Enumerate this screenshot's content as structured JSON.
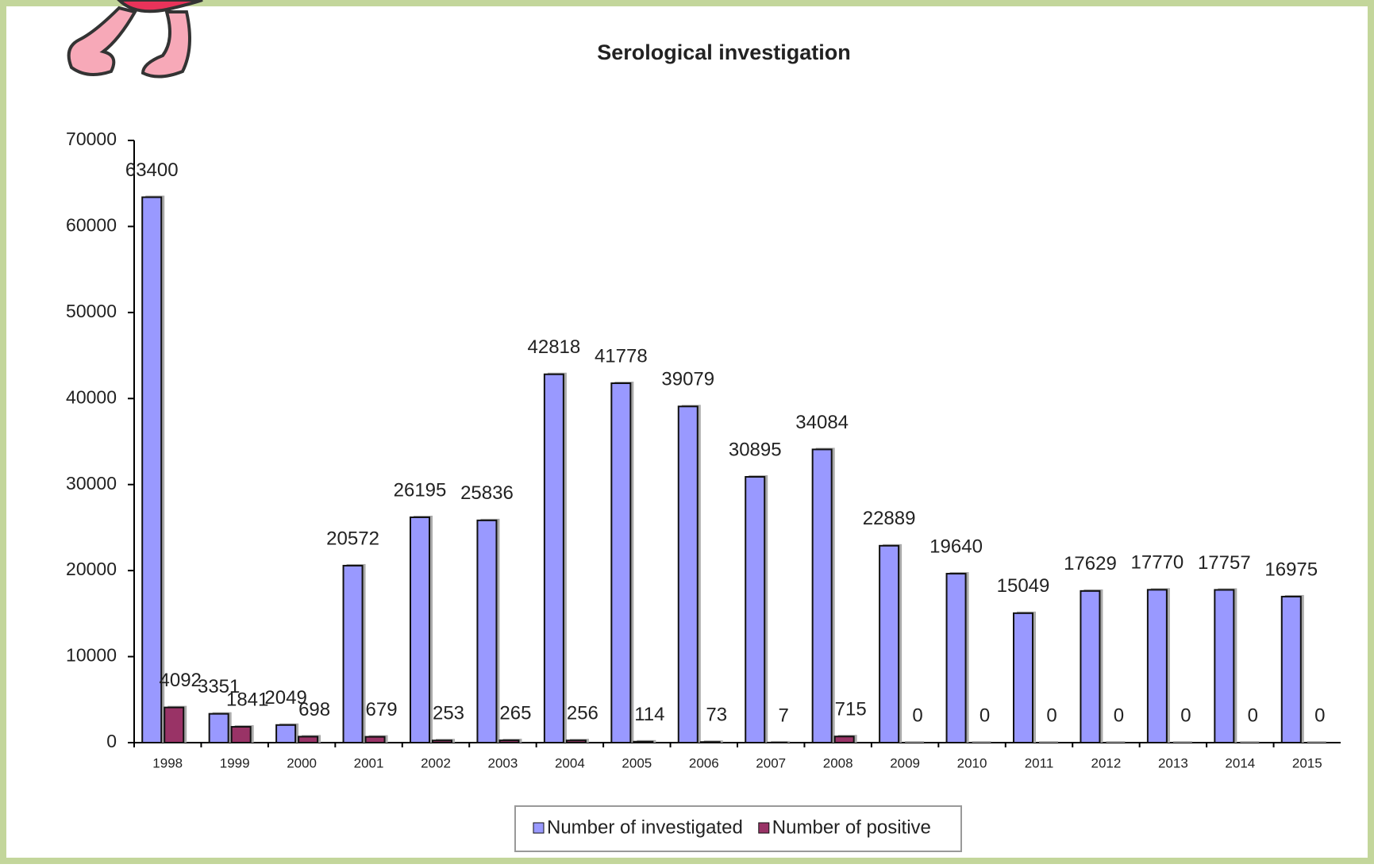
{
  "chart_data": {
    "type": "bar",
    "title": "Serological investigation",
    "categories": [
      "1998",
      "1999",
      "2000",
      "2001",
      "2002",
      "2003",
      "2004",
      "2005",
      "2006",
      "2007",
      "2008",
      "2009",
      "2010",
      "2011",
      "2012",
      "2013",
      "2014",
      "2015"
    ],
    "series": [
      {
        "name": "Number of investigated",
        "color": "#9999ff",
        "values": [
          63400,
          3351,
          2049,
          20572,
          26195,
          25836,
          42818,
          41778,
          39079,
          30895,
          34084,
          22889,
          19640,
          15049,
          17629,
          17770,
          17757,
          16975
        ]
      },
      {
        "name": "Number of positive",
        "color": "#993366",
        "values": [
          4092,
          1841,
          698,
          679,
          253,
          265,
          256,
          114,
          73,
          7,
          715,
          0,
          0,
          0,
          0,
          0,
          0,
          0
        ]
      }
    ],
    "ylim": [
      0,
      70000
    ],
    "yticks": [
      0,
      10000,
      20000,
      30000,
      40000,
      50000,
      60000,
      70000
    ],
    "legend": "bottom"
  }
}
